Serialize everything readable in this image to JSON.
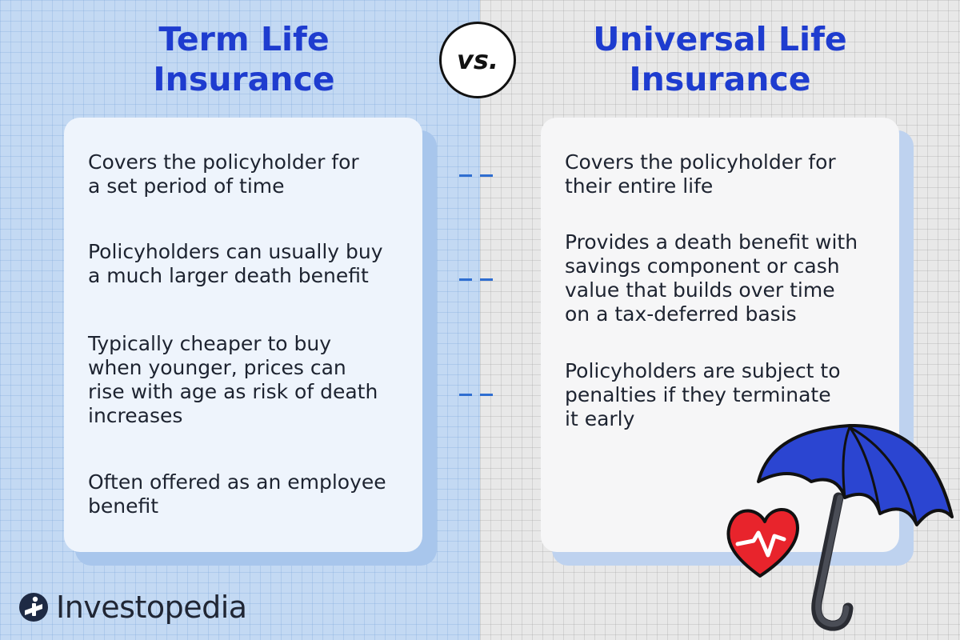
{
  "left": {
    "title_lines": [
      "Term Life",
      "Insurance"
    ],
    "items": [
      {
        "lines": [
          "Covers the policyholder for",
          "a set period of time"
        ]
      },
      {
        "lines": [
          "Policyholders can usually buy",
          "a much larger death benefit"
        ]
      },
      {
        "lines": [
          "Typically cheaper to buy",
          "when younger, prices can",
          "rise with age as risk of death",
          "increases"
        ]
      },
      {
        "lines": [
          "Often offered as an employee",
          "benefit"
        ]
      }
    ]
  },
  "vs_label": "vs.",
  "right": {
    "title_lines": [
      "Universal Life",
      "Insurance"
    ],
    "items": [
      {
        "lines": [
          "Covers the policyholder for",
          "their entire life"
        ]
      },
      {
        "lines": [
          "Provides a death benefit with",
          "savings component or cash",
          "value that builds over time",
          "on a tax-deferred basis"
        ]
      },
      {
        "lines": [
          "Policyholders are subject to",
          "penalties if they terminate",
          "it early"
        ]
      }
    ]
  },
  "brand": {
    "name": "Investopedia",
    "logo_icon": "investopedia-logo-icon"
  },
  "illustration": {
    "icons": [
      "umbrella-icon",
      "heart-icon"
    ]
  },
  "colors": {
    "heading": "#1e3ccf",
    "left_background": "#c3d9f3",
    "right_background": "#e8e8e8",
    "connector": "#2f6ed0",
    "umbrella": "#2b45d1",
    "heart": "#e8242c"
  }
}
